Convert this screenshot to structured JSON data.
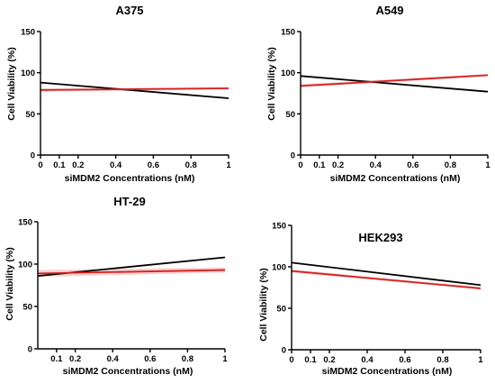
{
  "colors": {
    "black_series": "#000000",
    "red_series": "#d62020",
    "band": "#f2c4c4",
    "axis": "#000000"
  },
  "chart_data": [
    {
      "type": "line",
      "title": "A375",
      "xlabel": "siMDM2 Concentrations  (nM)",
      "ylabel": "Cell Viability (%)",
      "xlim": [
        0,
        1
      ],
      "ylim": [
        0,
        150
      ],
      "xticks": [
        "0",
        "0.1",
        "0.2",
        "0.4",
        "0.6",
        "0.8",
        "1"
      ],
      "yticks": [
        "0",
        "50",
        "100",
        "150"
      ],
      "series": [
        {
          "color": "#000000",
          "x": [
            0,
            1
          ],
          "y": [
            88,
            69
          ]
        },
        {
          "color": "#d62020",
          "x": [
            0,
            1
          ],
          "y": [
            79,
            81
          ],
          "band": [
            2,
            1.5
          ]
        }
      ]
    },
    {
      "type": "line",
      "title": "A549",
      "xlabel": "siMDM2 Concentrations  (nM)",
      "ylabel": "Cell Viability (%)",
      "xlim": [
        0,
        1
      ],
      "ylim": [
        0,
        150
      ],
      "xticks": [
        "0",
        "0.1",
        "0.2",
        "0.4",
        "0.6",
        "0.8",
        "1"
      ],
      "yticks": [
        "0",
        "50",
        "100",
        "150"
      ],
      "series": [
        {
          "color": "#000000",
          "x": [
            0,
            1
          ],
          "y": [
            96,
            77
          ]
        },
        {
          "color": "#d62020",
          "x": [
            0,
            1
          ],
          "y": [
            84,
            97
          ],
          "band": [
            2,
            1.5
          ]
        }
      ]
    },
    {
      "type": "line",
      "title": "HT-29",
      "xlabel": "siMDM2 Concentrations  (nM)",
      "ylabel": "Cell Viability (%)",
      "xlim": [
        0,
        1
      ],
      "ylim": [
        0,
        150
      ],
      "xticks": [
        "0.1",
        "0.2",
        "0.4",
        "0.6",
        "0.8",
        "1"
      ],
      "yticks": [
        "0",
        "50",
        "100",
        "150"
      ],
      "series": [
        {
          "color": "#000000",
          "x": [
            0,
            1
          ],
          "y": [
            86,
            108
          ]
        },
        {
          "color": "#d62020",
          "x": [
            0,
            1
          ],
          "y": [
            89,
            93
          ],
          "band": [
            4,
            3
          ]
        }
      ]
    },
    {
      "type": "line",
      "title": "HEK293",
      "xlabel": "siMDM2 Concentrations  (nM)",
      "ylabel": "Cell Viability (%)",
      "xlim": [
        0,
        1
      ],
      "ylim": [
        0,
        150
      ],
      "xticks": [
        "0",
        "0.1",
        "0.2",
        "0.4",
        "0.6",
        "0.8",
        "1"
      ],
      "yticks": [
        "0",
        "50",
        "100",
        "150"
      ],
      "series": [
        {
          "color": "#000000",
          "x": [
            0,
            1
          ],
          "y": [
            105,
            78
          ]
        },
        {
          "color": "#d62020",
          "x": [
            0,
            1
          ],
          "y": [
            95,
            74
          ],
          "band": [
            2,
            1.5
          ]
        }
      ]
    }
  ]
}
